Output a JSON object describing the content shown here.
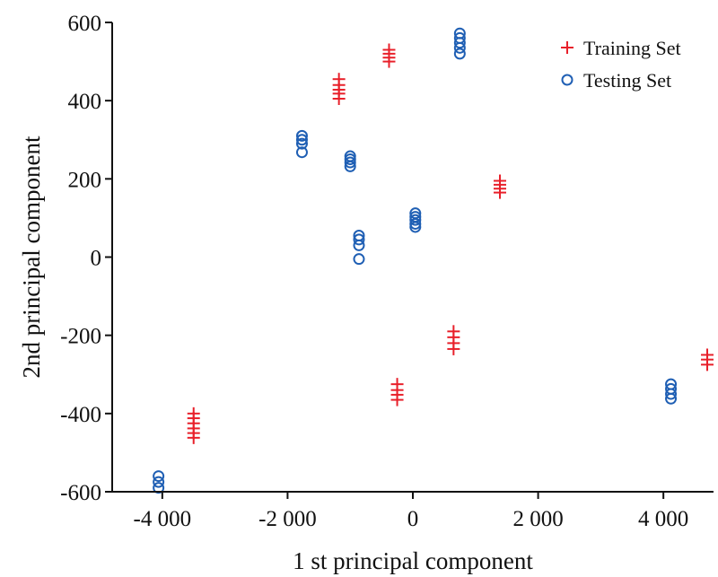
{
  "colors": {
    "training": "#e8202a",
    "testing": "#1f5fb4",
    "axis": "#111111"
  },
  "chart_data": {
    "type": "scatter",
    "title": "",
    "xlabel": "1 st principal component",
    "ylabel": "2nd principal component",
    "xlim": [
      -4800,
      4800
    ],
    "ylim": [
      -600,
      600
    ],
    "xticks": [
      -4000,
      -2000,
      0,
      2000,
      4000
    ],
    "xtick_labels": [
      "-4 000",
      "-2 000",
      "0",
      "2 000",
      "4 000"
    ],
    "yticks": [
      -600,
      -400,
      -200,
      0,
      200,
      400,
      600
    ],
    "ytick_labels": [
      "-600",
      "-400",
      "-200",
      "0",
      "200",
      "400",
      "600"
    ],
    "grid": false,
    "legend_position": "top-right",
    "series": [
      {
        "name": "Training Set",
        "marker": "plus",
        "color": "#e8202a",
        "points": [
          [
            -3500,
            -400
          ],
          [
            -3500,
            -412
          ],
          [
            -3500,
            -425
          ],
          [
            -3500,
            -438
          ],
          [
            -3500,
            -450
          ],
          [
            -3500,
            -462
          ],
          [
            -1180,
            455
          ],
          [
            -1180,
            440
          ],
          [
            -1180,
            428
          ],
          [
            -1180,
            418
          ],
          [
            -1180,
            405
          ],
          [
            -380,
            530
          ],
          [
            -380,
            520
          ],
          [
            -380,
            510
          ],
          [
            -380,
            500
          ],
          [
            -250,
            -325
          ],
          [
            -250,
            -340
          ],
          [
            -250,
            -352
          ],
          [
            -250,
            -365
          ],
          [
            650,
            -190
          ],
          [
            650,
            -205
          ],
          [
            650,
            -220
          ],
          [
            650,
            -235
          ],
          [
            1390,
            195
          ],
          [
            1390,
            185
          ],
          [
            1390,
            175
          ],
          [
            1390,
            165
          ],
          [
            4700,
            -250
          ],
          [
            4700,
            -262
          ],
          [
            4700,
            -275
          ]
        ]
      },
      {
        "name": "Testing Set",
        "marker": "circle",
        "color": "#1f5fb4",
        "points": [
          [
            -4060,
            -560
          ],
          [
            -4060,
            -575
          ],
          [
            -4060,
            -590
          ],
          [
            -1770,
            310
          ],
          [
            -1770,
            300
          ],
          [
            -1770,
            290
          ],
          [
            -1770,
            268
          ],
          [
            -1000,
            258
          ],
          [
            -1000,
            250
          ],
          [
            -1000,
            242
          ],
          [
            -1000,
            232
          ],
          [
            -860,
            55
          ],
          [
            -860,
            45
          ],
          [
            -860,
            30
          ],
          [
            -860,
            -5
          ],
          [
            40,
            112
          ],
          [
            40,
            103
          ],
          [
            40,
            95
          ],
          [
            40,
            85
          ],
          [
            40,
            77
          ],
          [
            750,
            572
          ],
          [
            750,
            560
          ],
          [
            750,
            548
          ],
          [
            750,
            535
          ],
          [
            750,
            520
          ],
          [
            4120,
            -325
          ],
          [
            4120,
            -337
          ],
          [
            4120,
            -350
          ],
          [
            4120,
            -362
          ]
        ]
      }
    ]
  }
}
